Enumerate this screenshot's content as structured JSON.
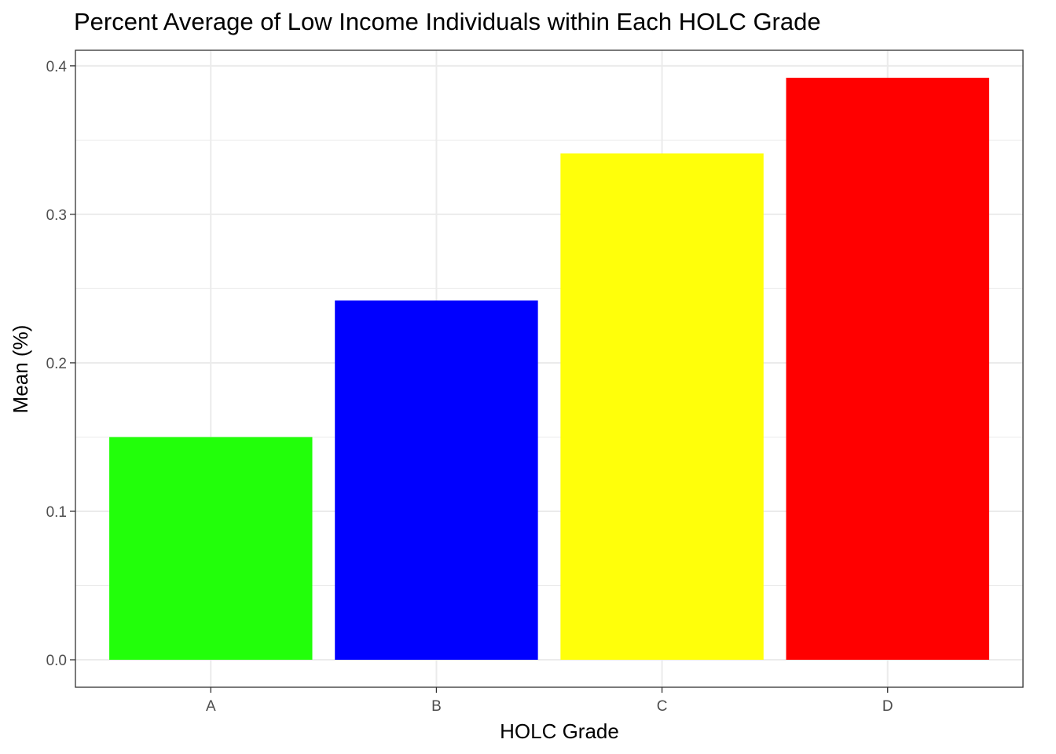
{
  "chart_data": {
    "type": "bar",
    "title": "Percent Average of Low Income Individuals within Each HOLC Grade",
    "xlabel": "HOLC Grade",
    "ylabel": "Mean (%)",
    "categories": [
      "A",
      "B",
      "C",
      "D"
    ],
    "values": [
      0.15,
      0.242,
      0.341,
      0.392
    ],
    "bar_colors": [
      "#22FF0A",
      "#0000FF",
      "#FFFF0A",
      "#FF0000"
    ],
    "ylim": [
      -0.0185,
      0.4105
    ],
    "yticks": [
      0.0,
      0.1,
      0.2,
      0.3,
      0.4
    ],
    "ytick_labels": [
      "0.0",
      "0.1",
      "0.2",
      "0.3",
      "0.4"
    ],
    "grid": true,
    "legend": "none"
  }
}
